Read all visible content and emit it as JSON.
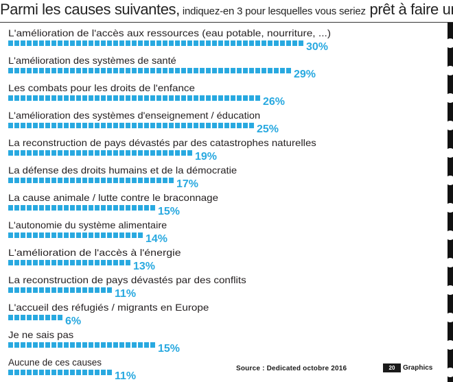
{
  "header": {
    "title_main_1": "Parmi les causes suivantes,",
    "title_small": " indiquez-en 3 pour lesquelles vous seriez",
    "title_main_2": " prêt à faire un don"
  },
  "footer": {
    "source": "Source : Dedicated octobre 2016",
    "logo_mark": "20",
    "logo_text": "Graphics"
  },
  "colors": {
    "bar": "#29a9e0",
    "label": "#231f20",
    "edge": "#111111"
  },
  "chart_data": {
    "type": "bar",
    "orientation": "horizontal",
    "value_suffix": "%",
    "categories": [
      "L'amélioration de l'accès aux ressources (eau potable, nourriture, ...)",
      "L'amélioration des systèmes de santé",
      "Les combats pour les droits de l'enfance",
      "L'amélioration des systèmes d'enseignement / éducation",
      "La reconstruction de pays dévastés par des catastrophes naturelles",
      "La défense des droits humains et de la démocratie",
      "La cause animale / lutte contre le braconnage",
      "L'autonomie du système alimentaire",
      "L'amélioration de l'accès à l'énergie",
      "La reconstruction de pays dévastés par des conflits",
      "L'accueil des réfugiés / migrants en Europe",
      "Je ne sais pas",
      "Aucune de ces causes"
    ],
    "values": [
      30,
      29,
      26,
      25,
      19,
      17,
      15,
      14,
      13,
      11,
      6,
      15,
      11
    ],
    "xlim": [
      0,
      30
    ]
  }
}
